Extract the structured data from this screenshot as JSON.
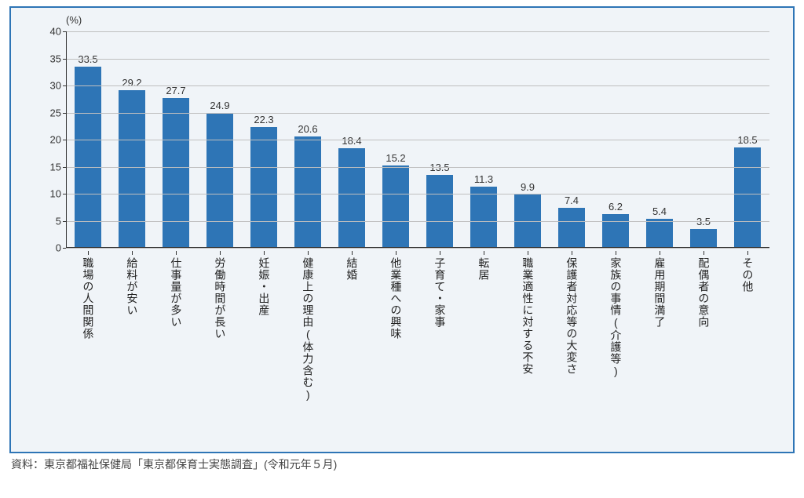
{
  "chart": {
    "type": "bar",
    "unit_label": "(%)",
    "ylim": [
      0,
      40
    ],
    "ytick_step": 5,
    "yticks": [
      0,
      5,
      10,
      15,
      20,
      25,
      30,
      35,
      40
    ],
    "bar_color": "#2e75b6",
    "grid_color": "#bfbfbf",
    "axis_color": "#333333",
    "background_color": "#f0f4f8",
    "border_color": "#2e75b6",
    "value_fontsize": 13,
    "label_fontsize": 14,
    "bar_width_ratio": 0.62,
    "categories": [
      "職場の人間関係",
      "給料が安い",
      "仕事量が多い",
      "労働時間が長い",
      "妊娠・出産",
      "健康上の理由(体力含む)",
      "結婚",
      "他業種への興味",
      "子育て・家事",
      "転居",
      "職業適性に対する不安",
      "保護者対応等の大変さ",
      "家族の事情(介護等)",
      "雇用期間満了",
      "配偶者の意向",
      "その他"
    ],
    "values": [
      33.5,
      29.2,
      27.7,
      24.9,
      22.3,
      20.6,
      18.4,
      15.2,
      13.5,
      11.3,
      9.9,
      7.4,
      6.2,
      5.4,
      3.5,
      18.5
    ]
  },
  "source_text": "資料：東京都福祉保健局「東京都保育士実態調査」(令和元年５月)"
}
